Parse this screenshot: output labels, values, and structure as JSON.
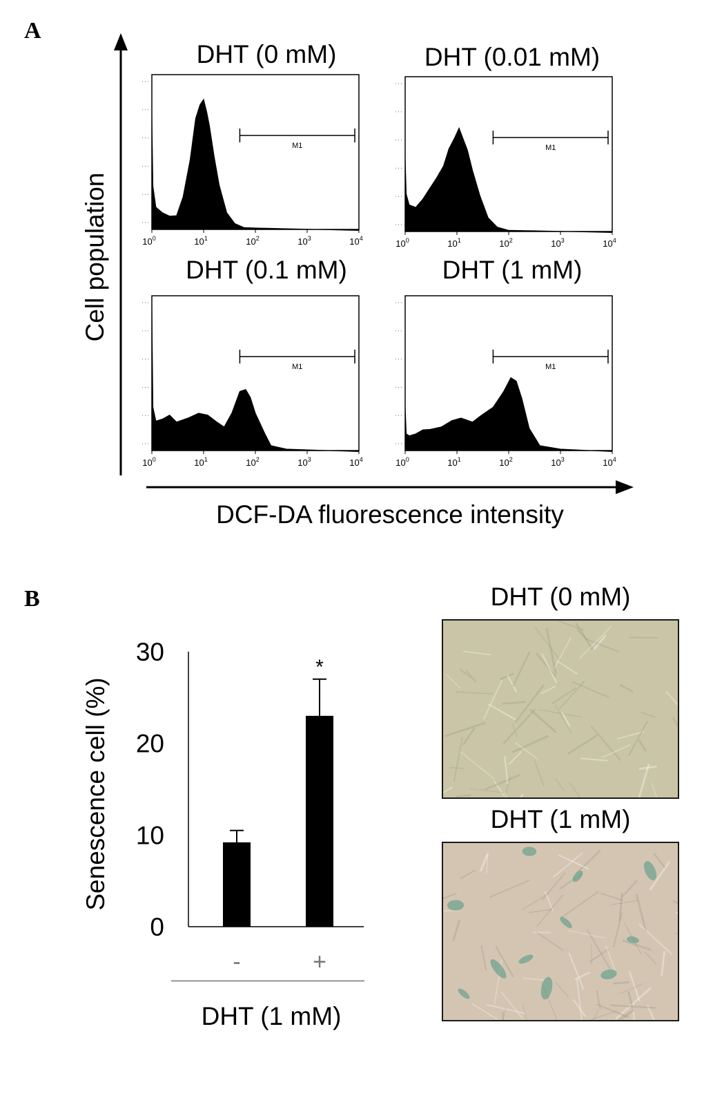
{
  "panel_a": {
    "letter": "A",
    "y_axis_label": "Cell population",
    "x_axis_label": "DCF-DA fluorescence intensity",
    "marker_label": "M1",
    "x_tick_labels": [
      "10",
      "10",
      "10",
      "10",
      "10"
    ],
    "x_tick_exponents": [
      "0",
      "1",
      "2",
      "3",
      "4"
    ],
    "histograms": [
      {
        "title": "DHT (0 mM)"
      },
      {
        "title": "DHT (0.01 mM)"
      },
      {
        "title": "DHT (0.1 mM)"
      },
      {
        "title": "DHT (1 mM)"
      }
    ]
  },
  "panel_b": {
    "letter": "B",
    "ylabel": "Senescence cell (%)",
    "xlabel": "DHT (1 mM)",
    "significance_mark": "*",
    "photos": [
      {
        "title": "DHT (0 mM)",
        "tint": "#c9c5a6"
      },
      {
        "title": "DHT (1 mM)",
        "tint": "#d4c5b3",
        "stain": "#5f9e88"
      }
    ]
  },
  "chart_data": [
    {
      "type": "area",
      "title": "DHT (0 mM)",
      "xlabel": "DCF-DA fluorescence intensity",
      "ylabel": "Cell population",
      "x_scale": "log",
      "xlim": [
        1,
        10000
      ],
      "marker": {
        "label": "M1",
        "range": [
          50,
          10000
        ]
      },
      "x": [
        1,
        1.05,
        1.2,
        1.6,
        2.2,
        3,
        4,
        5.5,
        7,
        8.5,
        10,
        11.5,
        13,
        16,
        20,
        28,
        40,
        60,
        100,
        10000
      ],
      "values": [
        0.78,
        0.3,
        0.15,
        0.12,
        0.09,
        0.1,
        0.22,
        0.48,
        0.75,
        0.85,
        0.88,
        0.8,
        0.7,
        0.5,
        0.3,
        0.12,
        0.04,
        0.02,
        0.01,
        0
      ]
    },
    {
      "type": "area",
      "title": "DHT (0.01 mM)",
      "xlabel": "DCF-DA fluorescence intensity",
      "ylabel": "Cell population",
      "x_scale": "log",
      "xlim": [
        1,
        10000
      ],
      "marker": {
        "label": "M1",
        "range": [
          50,
          10000
        ]
      },
      "x": [
        1,
        1.05,
        1.2,
        1.6,
        2.2,
        3,
        4,
        5.5,
        7,
        9,
        11,
        13,
        16,
        20,
        28,
        40,
        60,
        100,
        300,
        10000
      ],
      "values": [
        0.5,
        0.26,
        0.18,
        0.17,
        0.22,
        0.3,
        0.36,
        0.45,
        0.56,
        0.64,
        0.7,
        0.64,
        0.55,
        0.42,
        0.24,
        0.1,
        0.03,
        0.015,
        0.005,
        0
      ]
    },
    {
      "type": "area",
      "title": "DHT (0.1 mM)",
      "xlabel": "DCF-DA fluorescence intensity",
      "ylabel": "Cell population",
      "x_scale": "log",
      "xlim": [
        1,
        10000
      ],
      "marker": {
        "label": "M1",
        "range": [
          50,
          10000
        ]
      },
      "x": [
        1,
        1.05,
        1.2,
        1.6,
        2.2,
        3,
        5,
        8,
        12,
        18,
        25,
        35,
        50,
        65,
        80,
        100,
        150,
        200,
        400,
        10000
      ],
      "values": [
        0.98,
        0.3,
        0.2,
        0.22,
        0.24,
        0.2,
        0.22,
        0.26,
        0.24,
        0.2,
        0.16,
        0.26,
        0.4,
        0.42,
        0.36,
        0.26,
        0.12,
        0.04,
        0.01,
        0
      ]
    },
    {
      "type": "area",
      "title": "DHT (1 mM)",
      "xlabel": "DCF-DA fluorescence intensity",
      "ylabel": "Cell population",
      "x_scale": "log",
      "xlim": [
        1,
        10000
      ],
      "marker": {
        "label": "M1",
        "range": [
          50,
          10000
        ]
      },
      "x": [
        1,
        1.05,
        1.2,
        1.6,
        2.2,
        3,
        5,
        8,
        12,
        20,
        30,
        50,
        80,
        110,
        140,
        180,
        250,
        400,
        1000,
        10000
      ],
      "values": [
        0.3,
        0.12,
        0.1,
        0.12,
        0.14,
        0.15,
        0.16,
        0.21,
        0.22,
        0.2,
        0.24,
        0.3,
        0.4,
        0.5,
        0.47,
        0.36,
        0.15,
        0.04,
        0.01,
        0
      ]
    },
    {
      "type": "bar",
      "categories": [
        "-",
        "+"
      ],
      "values": [
        9.2,
        23
      ],
      "errors": [
        1.3,
        4
      ],
      "ylabel": "Senescence cell (%)",
      "xlabel": "DHT (1 mM)",
      "ylim": [
        0,
        30
      ],
      "yticks": [
        "0",
        "10",
        "20",
        "30"
      ],
      "grid": false,
      "annotations": [
        "*"
      ]
    }
  ]
}
